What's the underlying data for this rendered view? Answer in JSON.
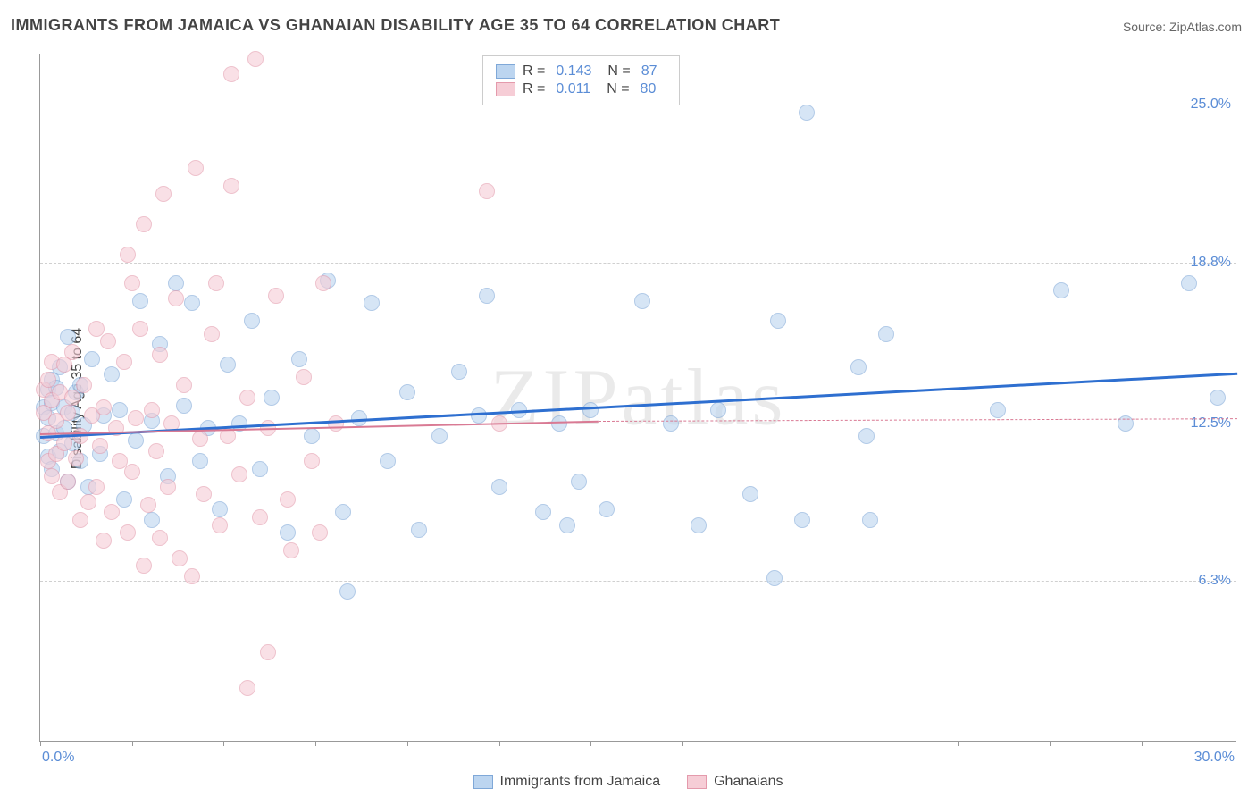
{
  "title": "IMMIGRANTS FROM JAMAICA VS GHANAIAN DISABILITY AGE 35 TO 64 CORRELATION CHART",
  "source": {
    "label": "Source: ",
    "value": "ZipAtlas.com"
  },
  "ylabel": "Disability Age 35 to 64",
  "watermark": "ZIPatlas",
  "chart": {
    "type": "scatter",
    "xlim": [
      0.0,
      30.0
    ],
    "ylim": [
      0.0,
      27.0
    ],
    "x_axis_labels": [
      {
        "value": 0.0,
        "text": "0.0%"
      },
      {
        "value": 30.0,
        "text": "30.0%"
      }
    ],
    "y_grid": [
      6.3,
      12.5,
      18.8,
      25.0
    ],
    "y_grid_labels": [
      "6.3%",
      "12.5%",
      "18.8%",
      "25.0%"
    ],
    "x_ticks": [
      0,
      2.3,
      4.6,
      6.9,
      9.2,
      11.5,
      13.8,
      16.1,
      18.4,
      20.7,
      23.0,
      25.3,
      27.6
    ],
    "grid_color": "#d0d0d0",
    "axis_color": "#999999",
    "label_color": "#5b8dd6",
    "background_color": "#ffffff",
    "marker_size": 18,
    "series": [
      {
        "name": "Immigrants from Jamaica",
        "color_fill": "#bcd5f0",
        "color_stroke": "#7fa8d8",
        "R": 0.143,
        "N": 87,
        "regression": {
          "x0": 0.0,
          "y0": 12.0,
          "x1": 30.0,
          "y1": 14.5,
          "color": "#2e6fd0",
          "width": 2.5,
          "dashed": false
        },
        "points": [
          [
            0.1,
            13.1
          ],
          [
            0.1,
            12.0
          ],
          [
            0.2,
            13.8
          ],
          [
            0.2,
            11.2
          ],
          [
            0.2,
            12.7
          ],
          [
            0.3,
            13.3
          ],
          [
            0.3,
            14.2
          ],
          [
            0.3,
            10.7
          ],
          [
            0.4,
            12.1
          ],
          [
            0.4,
            13.9
          ],
          [
            0.5,
            11.4
          ],
          [
            0.5,
            14.7
          ],
          [
            0.6,
            12.3
          ],
          [
            0.6,
            13.1
          ],
          [
            0.7,
            10.2
          ],
          [
            0.7,
            15.9
          ],
          [
            0.8,
            11.7
          ],
          [
            0.8,
            12.9
          ],
          [
            0.9,
            13.7
          ],
          [
            1.0,
            14.0
          ],
          [
            1.0,
            11.0
          ],
          [
            1.1,
            12.4
          ],
          [
            1.2,
            10.0
          ],
          [
            1.3,
            15.0
          ],
          [
            1.5,
            11.3
          ],
          [
            1.6,
            12.8
          ],
          [
            1.8,
            14.4
          ],
          [
            2.0,
            13.0
          ],
          [
            2.1,
            9.5
          ],
          [
            2.4,
            11.8
          ],
          [
            2.5,
            17.3
          ],
          [
            2.8,
            12.6
          ],
          [
            2.8,
            8.7
          ],
          [
            3.0,
            15.6
          ],
          [
            3.2,
            10.4
          ],
          [
            3.4,
            18.0
          ],
          [
            3.6,
            13.2
          ],
          [
            3.8,
            17.2
          ],
          [
            4.0,
            11.0
          ],
          [
            4.2,
            12.3
          ],
          [
            4.5,
            9.1
          ],
          [
            4.7,
            14.8
          ],
          [
            5.0,
            12.5
          ],
          [
            5.3,
            16.5
          ],
          [
            5.5,
            10.7
          ],
          [
            5.8,
            13.5
          ],
          [
            6.2,
            8.2
          ],
          [
            6.5,
            15.0
          ],
          [
            6.8,
            12.0
          ],
          [
            7.2,
            18.1
          ],
          [
            7.6,
            9.0
          ],
          [
            7.7,
            5.9
          ],
          [
            8.0,
            12.7
          ],
          [
            8.3,
            17.2
          ],
          [
            8.7,
            11.0
          ],
          [
            9.2,
            13.7
          ],
          [
            9.5,
            8.3
          ],
          [
            10.0,
            12.0
          ],
          [
            10.5,
            14.5
          ],
          [
            11.0,
            12.8
          ],
          [
            11.2,
            17.5
          ],
          [
            11.5,
            10.0
          ],
          [
            12.0,
            13.0
          ],
          [
            12.6,
            9.0
          ],
          [
            13.0,
            12.5
          ],
          [
            13.2,
            8.5
          ],
          [
            13.5,
            10.2
          ],
          [
            13.8,
            13.0
          ],
          [
            14.2,
            9.1
          ],
          [
            15.1,
            17.3
          ],
          [
            15.8,
            12.5
          ],
          [
            16.5,
            8.5
          ],
          [
            17.0,
            13.0
          ],
          [
            17.8,
            9.7
          ],
          [
            18.4,
            6.4
          ],
          [
            18.5,
            16.5
          ],
          [
            19.1,
            8.7
          ],
          [
            19.2,
            24.7
          ],
          [
            20.5,
            14.7
          ],
          [
            20.7,
            12.0
          ],
          [
            20.8,
            8.7
          ],
          [
            21.2,
            16.0
          ],
          [
            24.0,
            13.0
          ],
          [
            25.6,
            17.7
          ],
          [
            27.2,
            12.5
          ],
          [
            28.8,
            18.0
          ],
          [
            29.5,
            13.5
          ]
        ]
      },
      {
        "name": "Ghanaians",
        "color_fill": "#f6cdd6",
        "color_stroke": "#e49aac",
        "R": 0.011,
        "N": 80,
        "regression": {
          "x0": 0.0,
          "y0": 12.1,
          "x1": 14.0,
          "y1": 12.6,
          "color": "#d97a94",
          "width": 2,
          "dashed": false
        },
        "regression_ext": {
          "x0": 14.0,
          "y0": 12.6,
          "x1": 30.0,
          "y1": 12.7,
          "color": "#d97a94",
          "width": 1,
          "dashed": true
        },
        "points": [
          [
            0.1,
            12.9
          ],
          [
            0.1,
            13.8
          ],
          [
            0.2,
            11.0
          ],
          [
            0.2,
            14.2
          ],
          [
            0.2,
            12.1
          ],
          [
            0.3,
            13.4
          ],
          [
            0.3,
            10.4
          ],
          [
            0.3,
            14.9
          ],
          [
            0.4,
            12.6
          ],
          [
            0.4,
            11.3
          ],
          [
            0.5,
            13.7
          ],
          [
            0.5,
            9.8
          ],
          [
            0.6,
            14.8
          ],
          [
            0.6,
            11.7
          ],
          [
            0.7,
            12.9
          ],
          [
            0.7,
            10.2
          ],
          [
            0.8,
            13.5
          ],
          [
            0.8,
            15.3
          ],
          [
            0.9,
            11.1
          ],
          [
            1.0,
            12.0
          ],
          [
            1.0,
            8.7
          ],
          [
            1.1,
            14.0
          ],
          [
            1.2,
            9.4
          ],
          [
            1.3,
            12.8
          ],
          [
            1.4,
            16.2
          ],
          [
            1.4,
            10.0
          ],
          [
            1.5,
            11.6
          ],
          [
            1.6,
            7.9
          ],
          [
            1.6,
            13.1
          ],
          [
            1.7,
            15.7
          ],
          [
            1.8,
            9.0
          ],
          [
            1.9,
            12.3
          ],
          [
            2.0,
            11.0
          ],
          [
            2.1,
            14.9
          ],
          [
            2.2,
            8.2
          ],
          [
            2.2,
            19.1
          ],
          [
            2.3,
            18.0
          ],
          [
            2.3,
            10.6
          ],
          [
            2.4,
            12.7
          ],
          [
            2.5,
            16.2
          ],
          [
            2.6,
            6.9
          ],
          [
            2.6,
            20.3
          ],
          [
            2.7,
            9.3
          ],
          [
            2.8,
            13.0
          ],
          [
            2.9,
            11.4
          ],
          [
            3.0,
            15.2
          ],
          [
            3.0,
            8.0
          ],
          [
            3.1,
            21.5
          ],
          [
            3.2,
            10.0
          ],
          [
            3.3,
            12.5
          ],
          [
            3.4,
            17.4
          ],
          [
            3.5,
            7.2
          ],
          [
            3.6,
            14.0
          ],
          [
            3.8,
            6.5
          ],
          [
            3.9,
            22.5
          ],
          [
            4.0,
            11.9
          ],
          [
            4.1,
            9.7
          ],
          [
            4.3,
            16.0
          ],
          [
            4.4,
            18.0
          ],
          [
            4.5,
            8.5
          ],
          [
            4.7,
            12.0
          ],
          [
            4.8,
            21.8
          ],
          [
            4.8,
            26.2
          ],
          [
            5.0,
            10.5
          ],
          [
            5.2,
            2.1
          ],
          [
            5.2,
            13.5
          ],
          [
            5.5,
            8.8
          ],
          [
            5.4,
            26.8
          ],
          [
            5.7,
            12.3
          ],
          [
            5.7,
            3.5
          ],
          [
            5.9,
            17.5
          ],
          [
            6.2,
            9.5
          ],
          [
            6.3,
            7.5
          ],
          [
            6.6,
            14.3
          ],
          [
            6.8,
            11.0
          ],
          [
            7.0,
            8.2
          ],
          [
            7.1,
            18.0
          ],
          [
            7.4,
            12.5
          ],
          [
            11.2,
            21.6
          ],
          [
            11.5,
            12.5
          ]
        ]
      }
    ]
  },
  "legend_top": [
    {
      "series_idx": 0,
      "R_label": "R =",
      "R": "0.143",
      "N_label": "N =",
      "N": "87"
    },
    {
      "series_idx": 1,
      "R_label": "R =",
      "R": "0.011",
      "N_label": "N =",
      "N": "80"
    }
  ],
  "legend_bottom": [
    {
      "series_idx": 0
    },
    {
      "series_idx": 1
    }
  ]
}
